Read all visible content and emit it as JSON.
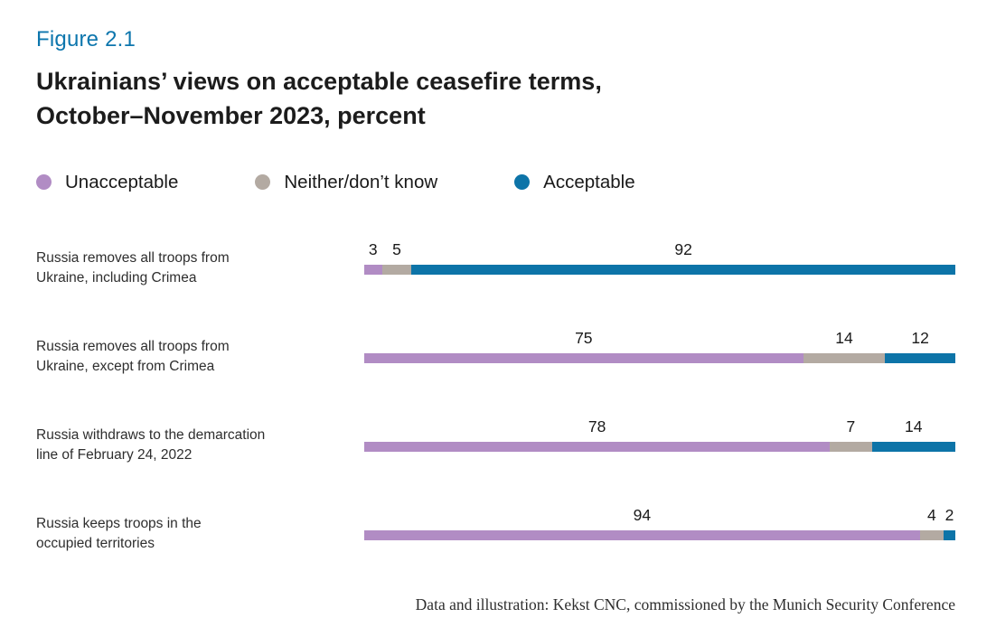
{
  "figure_label": "Figure 2.1",
  "title_line1": "Ukrainians’ views on acceptable ceasefire terms,",
  "title_line2": "October–November 2023, percent",
  "colors": {
    "accent": "#0d76ad",
    "unacceptable": "#b18cc4",
    "neither": "#b3aaa2",
    "acceptable": "#0d74a8"
  },
  "color_keys": [
    "unacceptable",
    "neither",
    "acceptable"
  ],
  "legend": [
    {
      "label": "Unacceptable",
      "color_key": "unacceptable"
    },
    {
      "label": "Neither/don’t know",
      "color_key": "neither"
    },
    {
      "label": "Acceptable",
      "color_key": "acceptable"
    }
  ],
  "chart_data": {
    "type": "bar",
    "orientation": "horizontal",
    "stacked": true,
    "unit": "percent",
    "xlim": [
      0,
      100
    ],
    "title": "Ukrainians’ views on acceptable ceasefire terms, October–November 2023, percent",
    "series_names": [
      "Unacceptable",
      "Neither/don’t know",
      "Acceptable"
    ],
    "categories": [
      "Russia removes all troops from Ukraine, including Crimea",
      "Russia removes all troops from Ukraine, except from Crimea",
      "Russia withdraws to the demarcation line of February 24, 2022",
      "Russia keeps troops in the occupied territories"
    ],
    "rows": [
      {
        "label": "Russia removes all troops from Ukraine, including Crimea",
        "label_lines": [
          "Russia removes all troops from",
          "Ukraine, including Crimea"
        ],
        "values": [
          3,
          5,
          92
        ]
      },
      {
        "label": "Russia removes all troops from Ukraine, except from Crimea",
        "label_lines": [
          "Russia removes all troops from",
          "Ukraine, except from Crimea"
        ],
        "values": [
          75,
          14,
          12
        ]
      },
      {
        "label": "Russia withdraws to the demarcation line of February 24, 2022",
        "label_lines": [
          "Russia withdraws to the demarcation",
          "line of February 24, 2022"
        ],
        "values": [
          78,
          7,
          14
        ]
      },
      {
        "label": "Russia keeps troops in the occupied territories",
        "label_lines": [
          "Russia keeps troops in the",
          "occupied territories"
        ],
        "values": [
          94,
          4,
          2
        ]
      }
    ]
  },
  "footer": "Data and illustration: Kekst CNC, commissioned by the Munich Security Conference"
}
